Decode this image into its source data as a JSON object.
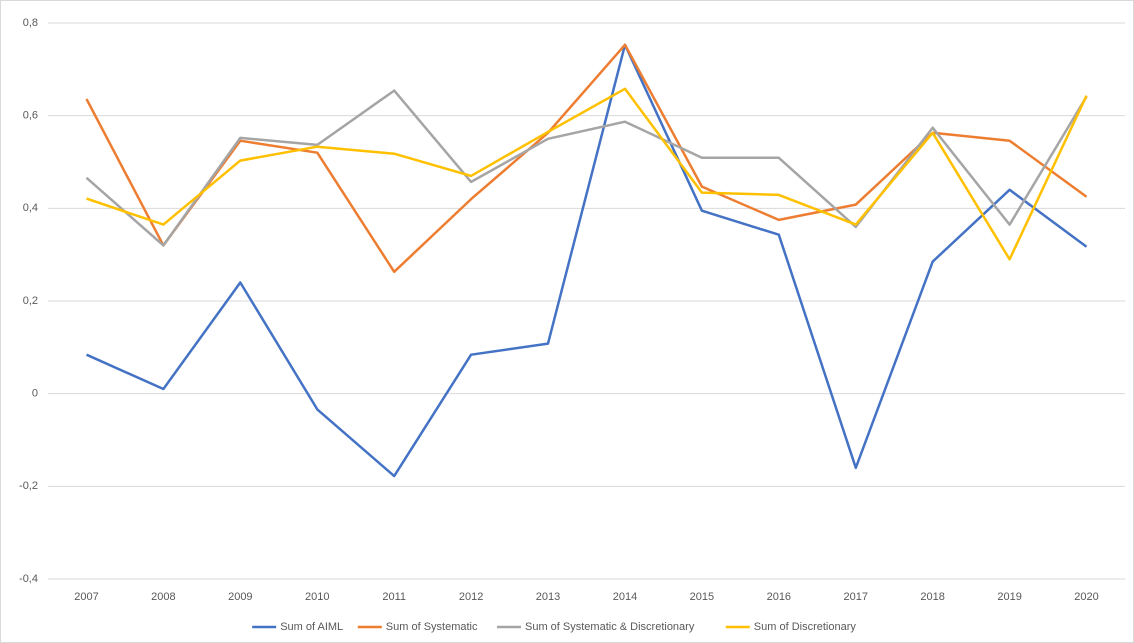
{
  "chart_data": {
    "type": "line",
    "categories": [
      "2007",
      "2008",
      "2009",
      "2010",
      "2011",
      "2012",
      "2013",
      "2014",
      "2015",
      "2016",
      "2017",
      "2018",
      "2019",
      "2020"
    ],
    "series": [
      {
        "name": "Sum of AIML",
        "color": "#4472c4",
        "values": [
          0.084,
          0.01,
          0.24,
          -0.034,
          -0.178,
          0.084,
          0.108,
          0.753,
          0.395,
          0.343,
          -0.16,
          0.285,
          0.44,
          0.317
        ]
      },
      {
        "name": "Sum of Systematic",
        "color": "#ed7d31",
        "values": [
          0.636,
          0.32,
          0.546,
          0.52,
          0.263,
          0.42,
          0.563,
          0.753,
          0.447,
          0.375,
          0.408,
          0.563,
          0.546,
          0.425
        ]
      },
      {
        "name": "Sum of Systematic & Discretionary",
        "color": "#a5a5a5",
        "values": [
          0.466,
          0.32,
          0.552,
          0.537,
          0.654,
          0.457,
          0.55,
          0.587,
          0.509,
          0.509,
          0.36,
          0.574,
          0.365,
          0.641
        ]
      },
      {
        "name": "Sum of Discretionary",
        "color": "#ffc000",
        "values": [
          0.421,
          0.365,
          0.503,
          0.533,
          0.518,
          0.47,
          0.565,
          0.658,
          0.434,
          0.429,
          0.365,
          0.563,
          0.29,
          0.643
        ]
      }
    ],
    "ylim": [
      -0.4,
      0.8
    ],
    "yticks": [
      {
        "value": -0.4,
        "label": "-0,4"
      },
      {
        "value": -0.2,
        "label": "-0,2"
      },
      0,
      {
        "value": 0.2,
        "label": "0,2"
      },
      {
        "value": 0.4,
        "label": "0,4"
      },
      {
        "value": 0.6,
        "label": "0,6"
      },
      {
        "value": 0.8,
        "label": "0,8"
      }
    ],
    "grid": true,
    "legend": "bottom"
  }
}
